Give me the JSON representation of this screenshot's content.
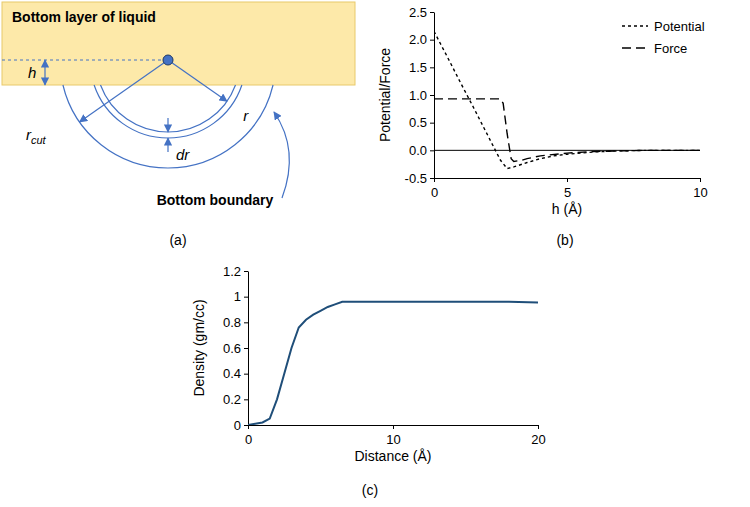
{
  "diagram": {
    "label": "(a)",
    "liquid_label": "Bottom layer of liquid",
    "h": "h",
    "r": "r",
    "r_cut": {
      "text": "r",
      "subscript": "cut"
    },
    "dr": "dr",
    "boundary_label": "Bottom boundary"
  },
  "chart_data": [
    {
      "type": "line",
      "title": "(b)",
      "x_label": "h (Å)",
      "y_label": "Potential/Force",
      "xlim": [
        0,
        10
      ],
      "xticks": [
        0,
        5,
        10
      ],
      "ylim": [
        -0.5,
        2.5
      ],
      "yticks": [
        {
          "value": -0.5,
          "label": "-0.5"
        },
        {
          "value": 0,
          "label": "0.0"
        },
        {
          "value": 0.5,
          "label": "0.5"
        },
        {
          "value": 1,
          "label": "1.0"
        },
        {
          "value": 1.5,
          "label": "1.5"
        },
        {
          "value": 2,
          "label": "2.0"
        },
        {
          "value": 2.5,
          "label": "2.5"
        }
      ],
      "grid": false,
      "legend": "top-right",
      "series": [
        {
          "name": "Potential",
          "color": "#000000",
          "line_style": "short-dash",
          "x": [
            0,
            0.5,
            1,
            1.5,
            2,
            2.5,
            2.75,
            3,
            3.5,
            4,
            4.5,
            5,
            6,
            7,
            8,
            10
          ],
          "values": [
            2.15,
            1.69,
            1.22,
            0.76,
            0.29,
            -0.18,
            -0.33,
            -0.3,
            -0.22,
            -0.15,
            -0.1,
            -0.07,
            -0.03,
            -0.01,
            0,
            0
          ]
        },
        {
          "name": "Force",
          "color": "#000000",
          "line_style": "long-dash",
          "x": [
            0,
            2.5,
            2.6,
            2.75,
            2.9,
            3,
            3.3,
            3.5,
            4,
            5,
            6,
            7,
            8,
            10
          ],
          "values": [
            0.93,
            0.93,
            0.85,
            0.3,
            -0.15,
            -0.2,
            -0.18,
            -0.15,
            -0.1,
            -0.05,
            -0.02,
            -0.01,
            0,
            0
          ]
        }
      ]
    },
    {
      "type": "line",
      "title": "(c)",
      "x_label": "Distance (Å)",
      "y_label": "Density (gm/cc)",
      "xlim": [
        0,
        20
      ],
      "xticks": [
        0,
        10,
        20
      ],
      "ylim": [
        0,
        1.2
      ],
      "yticks": [
        0,
        0.2,
        0.4,
        0.6,
        0.8,
        1,
        1.2
      ],
      "grid": false,
      "series": [
        {
          "color": "#1f4e79",
          "line_style": "solid",
          "x": [
            0,
            0.5,
            1,
            1.5,
            2,
            2.5,
            3,
            3.5,
            4,
            4.5,
            5,
            5.5,
            6,
            6.5,
            7,
            8,
            10,
            12,
            14,
            16,
            18,
            20
          ],
          "values": [
            0,
            0.01,
            0.02,
            0.05,
            0.2,
            0.4,
            0.6,
            0.76,
            0.82,
            0.86,
            0.89,
            0.92,
            0.94,
            0.96,
            0.96,
            0.96,
            0.96,
            0.96,
            0.96,
            0.96,
            0.96,
            0.955
          ]
        }
      ]
    }
  ]
}
